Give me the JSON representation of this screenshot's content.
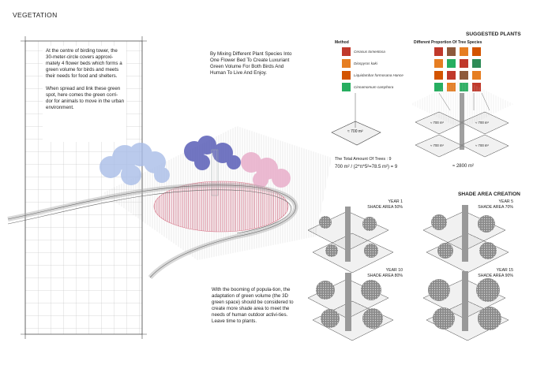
{
  "title": "VEGETATION",
  "intro_text": "At the centre of birding tower, the 30-meter-circle covers approxi-mately 4 flower beds which forms a green volume for birds and meets their needs for food and shelters.\n\nWhen spread and link these green spot, here comes the green corri-dor for animals to move in the urban environment.",
  "mixing_text": "By Mixing Different Plant Species Into One Flower Bed To Create Luxuriant Green Volume For Both Birds And Human To Live And Enjoy.",
  "bottom_text": "With the booming of popula-tion, the adaptation of green volume (the 3D green space) should be considered to create more shade area to meet the needs of human outdoor activi-ties.   Leave time to plants.",
  "suggested": {
    "heading": "SUGGESTED PLANTS",
    "method_label": "Method",
    "species_label": "Different Proportion Of Tree Species",
    "plants": [
      "Cerasus tomentosa",
      "Diospyros kaki",
      "Liquidambar formosana Hance",
      "Cinnamomum camphora"
    ],
    "single_area": "≈ 700 m²",
    "quad_areas": [
      "≈ 700 m²",
      "≈ 700 m²",
      "≈ 700 m²",
      "≈ 700 m²"
    ],
    "total_area": "≈ 2800 m²",
    "total_trees": "The Total Amount Of Trees : 9",
    "formula": "700 m² / (2*π*5²=78.5 m²) = 9"
  },
  "shade": {
    "heading": "SHADE AREA CREATION",
    "years": [
      {
        "year": "YEAR 1",
        "shade": "SHADE AREA 50%"
      },
      {
        "year": "YEAR 5",
        "shade": "SHADE AREA 70%"
      },
      {
        "year": "YEAR 10",
        "shade": "SHADE AREA 80%"
      },
      {
        "year": "YEAR 15",
        "shade": "SHADE AREA 90%"
      }
    ]
  },
  "colors": {
    "blue_trees": "#a9bde8",
    "purple_trees": "#5a5fb8",
    "pink_trees": "#e8a9c8",
    "red_bed": "#d0566e",
    "grid": "#9a9a9a",
    "tree_gray": "#7a7a7a"
  }
}
